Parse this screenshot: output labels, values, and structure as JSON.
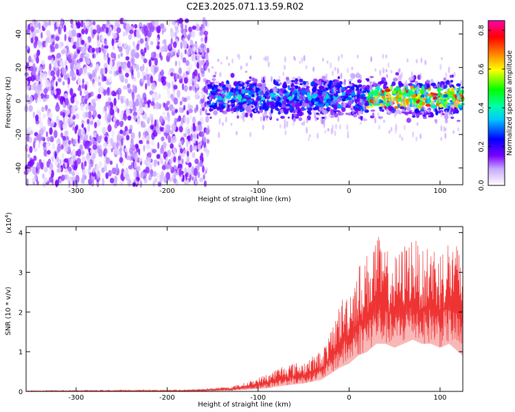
{
  "title": "C2E3.2025.071.13.59.R02",
  "chart_data": [
    {
      "type": "heatmap",
      "xlabel": "Height of straight line (km)",
      "ylabel": "Frequency (Hz)",
      "xlim": [
        -355,
        125
      ],
      "ylim": [
        -50,
        48
      ],
      "xticks": [
        -300,
        -200,
        -100,
        0,
        100
      ],
      "xtick_labels": [
        "-300",
        "-200",
        "-100",
        "0",
        "100"
      ],
      "yticks": [
        -40,
        -20,
        0,
        20,
        40
      ],
      "ytick_labels": [
        "-40",
        "-20",
        "0",
        "20",
        "40"
      ],
      "colorbar": {
        "label": "Normalized spectral amplitude",
        "range": [
          0.0,
          0.85
        ],
        "ticks": [
          0.0,
          0.2,
          0.4,
          0.6,
          0.8
        ],
        "tick_labels": [
          "0.0",
          "0.2",
          "0.4",
          "0.6",
          "0.8"
        ],
        "colors": [
          "#ffffff",
          "#7a00ff",
          "#0000ff",
          "#00ffff",
          "#00ff00",
          "#ffff00",
          "#ff8000",
          "#ff0000",
          "#ff00ff"
        ]
      },
      "regions": [
        {
          "x_range": [
            -355,
            -155
          ],
          "y_range": [
            -50,
            48
          ],
          "amplitude": 0.1
        },
        {
          "x_range": [
            -155,
            125
          ],
          "y_center": 2,
          "y_halfwidth": 10,
          "amplitude": 0.3
        },
        {
          "x_range": [
            20,
            125
          ],
          "y_center": 2,
          "y_halfwidth": 6,
          "amplitude": 0.55
        }
      ]
    },
    {
      "type": "line",
      "xlabel": "Height of straight line (km)",
      "ylabel": "SNR (10 * v/v)",
      "multiplier_label": "(x10",
      "multiplier_exponent": "4",
      "multiplier_close": ")",
      "xlim": [
        -355,
        125
      ],
      "ylim": [
        0,
        4.15
      ],
      "xticks": [
        -300,
        -200,
        -100,
        0,
        100
      ],
      "xtick_labels": [
        "-300",
        "-200",
        "-100",
        "0",
        "100"
      ],
      "yticks": [
        0,
        1,
        2,
        3,
        4
      ],
      "ytick_labels": [
        "0",
        "1",
        "2",
        "3",
        "4"
      ],
      "color": "#ee3333",
      "envelope": {
        "x": [
          -355,
          -180,
          -130,
          -110,
          -90,
          -70,
          -50,
          -30,
          -20,
          -10,
          0,
          10,
          20,
          30,
          40,
          50,
          60,
          70,
          80,
          90,
          100,
          110,
          120,
          125
        ],
        "upper": [
          0.02,
          0.04,
          0.12,
          0.25,
          0.45,
          0.7,
          0.75,
          1.05,
          1.5,
          2.3,
          2.6,
          3.2,
          3.5,
          4.0,
          3.6,
          3.4,
          3.7,
          4.0,
          3.5,
          3.8,
          3.6,
          3.9,
          3.7,
          3.3
        ],
        "lower": [
          0.0,
          0.0,
          0.02,
          0.05,
          0.08,
          0.15,
          0.2,
          0.3,
          0.45,
          0.6,
          0.7,
          0.9,
          1.0,
          1.2,
          1.2,
          1.1,
          1.2,
          1.3,
          1.2,
          1.2,
          1.1,
          1.2,
          1.0,
          0.9
        ]
      }
    }
  ]
}
